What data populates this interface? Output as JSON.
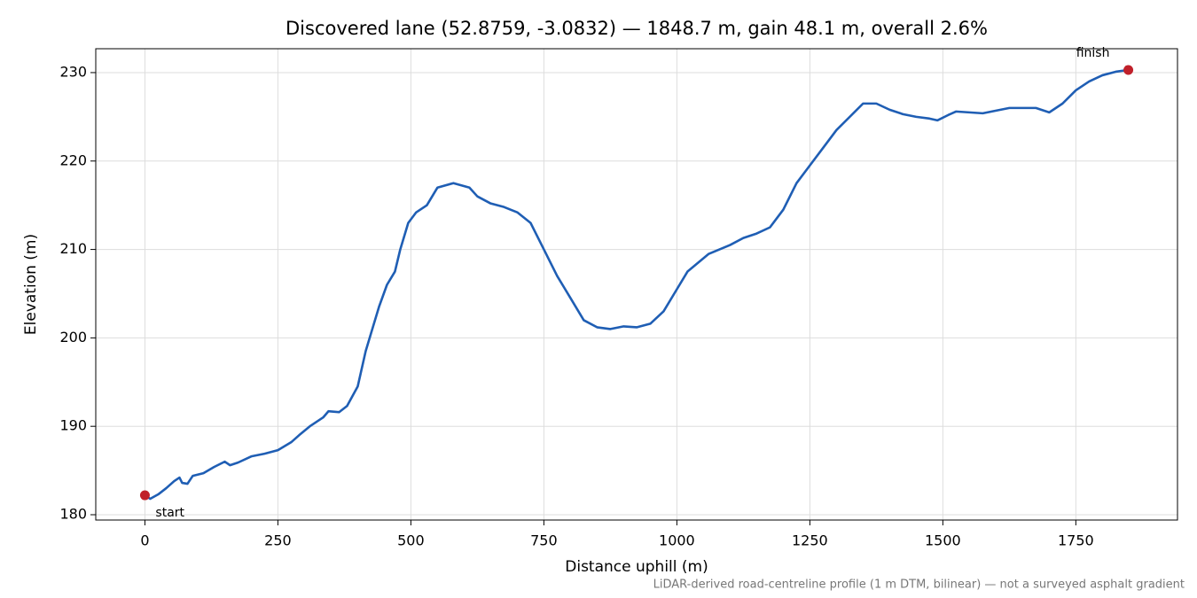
{
  "chart_data": {
    "type": "line",
    "title": "Discovered lane (52.8759, -3.0832) — 1848.7 m, gain 48.1 m, overall 2.6%",
    "x_label": "Distance uphill (m)",
    "y_label": "Elevation (m)",
    "footnote": "LiDAR-derived road-centreline profile (1 m DTM, bilinear) — not a surveyed asphalt gradient",
    "annotations": {
      "start": "start",
      "finish": "finish"
    },
    "marker_color": "#c0202a",
    "grid": true,
    "xlim": [
      -92.4,
      1941.1
    ],
    "ylim": [
      179.4,
      232.7
    ],
    "xticks": [
      0,
      250,
      500,
      750,
      1000,
      1250,
      1500,
      1750
    ],
    "yticks": [
      180,
      190,
      200,
      210,
      220,
      230
    ],
    "x": [
      0,
      10,
      25,
      40,
      55,
      65,
      70,
      80,
      90,
      110,
      130,
      150,
      160,
      175,
      200,
      225,
      250,
      275,
      290,
      310,
      335,
      345,
      365,
      380,
      400,
      415,
      425,
      440,
      455,
      470,
      480,
      495,
      510,
      530,
      550,
      580,
      610,
      625,
      650,
      675,
      700,
      725,
      750,
      775,
      800,
      825,
      850,
      875,
      900,
      925,
      950,
      975,
      1000,
      1020,
      1040,
      1060,
      1080,
      1100,
      1125,
      1150,
      1175,
      1200,
      1225,
      1250,
      1275,
      1300,
      1325,
      1350,
      1375,
      1400,
      1425,
      1450,
      1475,
      1490,
      1510,
      1525,
      1550,
      1575,
      1600,
      1625,
      1650,
      1675,
      1700,
      1725,
      1750,
      1775,
      1800,
      1825,
      1848.7
    ],
    "series": [
      {
        "name": "Elevation",
        "color": "#1f5eb4",
        "values": [
          182.2,
          181.8,
          182.3,
          183.0,
          183.8,
          184.2,
          183.6,
          183.5,
          184.4,
          184.7,
          185.4,
          186.0,
          185.6,
          185.9,
          186.6,
          186.9,
          187.3,
          188.2,
          189.0,
          190.0,
          191.0,
          191.7,
          191.6,
          192.3,
          194.5,
          198.5,
          200.5,
          203.5,
          206.0,
          207.5,
          210.0,
          213.0,
          214.2,
          215.0,
          217.0,
          217.5,
          217.0,
          216.0,
          215.2,
          214.8,
          214.2,
          213.0,
          210.0,
          207.0,
          204.5,
          202.0,
          201.2,
          201.0,
          201.3,
          201.2,
          201.6,
          203.0,
          205.5,
          207.5,
          208.5,
          209.5,
          210.0,
          210.5,
          211.3,
          211.8,
          212.5,
          214.5,
          217.5,
          219.5,
          221.5,
          223.5,
          225.0,
          226.5,
          226.5,
          225.8,
          225.3,
          225.0,
          224.8,
          224.6,
          225.2,
          225.6,
          225.5,
          225.4,
          225.7,
          226.0,
          226.0,
          226.0,
          225.5,
          226.5,
          228.0,
          229.0,
          229.7,
          230.1,
          230.3
        ]
      }
    ]
  }
}
